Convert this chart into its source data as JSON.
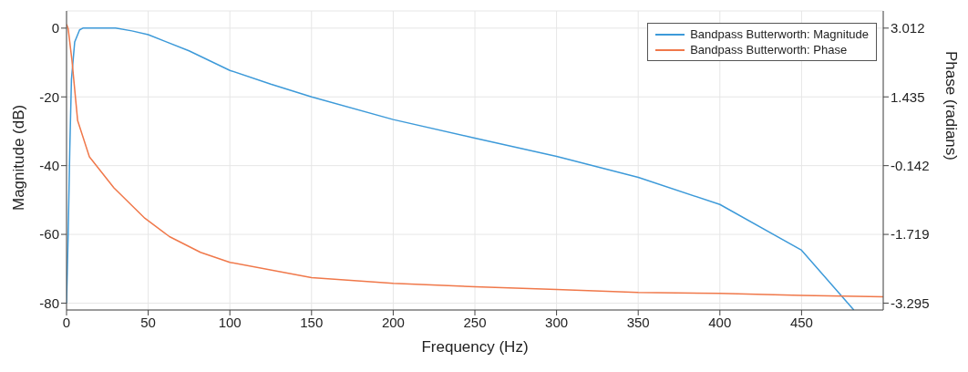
{
  "chart_data": {
    "type": "line",
    "xlabel": "Frequency (Hz)",
    "ylabel": "Magnitude (dB)",
    "y2label": "Phase (radians)",
    "xlim": [
      0,
      500
    ],
    "xticks": [
      0,
      50,
      100,
      150,
      200,
      250,
      300,
      350,
      400,
      450
    ],
    "ylim": [
      -82,
      5
    ],
    "yticks": [
      -80,
      -60,
      -40,
      -20,
      0
    ],
    "y2lim": [
      -3.453,
      3.406
    ],
    "y2ticks": [
      -3.295,
      -1.719,
      -0.142,
      1.435,
      3.012
    ],
    "grid": true,
    "legend": "top right",
    "line_style": "solid",
    "marker": "none",
    "series": [
      {
        "name": "Bandpass Butterworth: Magnitude",
        "color": "#3d9ad9",
        "x": [
          0,
          1,
          2,
          3,
          5,
          8,
          10,
          20,
          30,
          40,
          50,
          60,
          75,
          100,
          125,
          150,
          200,
          250,
          300,
          350,
          400,
          450,
          482
        ],
        "values": [
          -80,
          -60,
          -35,
          -15,
          -4,
          -0.5,
          0,
          0,
          0,
          -0.8,
          -1.9,
          -3.8,
          -6.6,
          -12.3,
          -16.3,
          -20,
          -26.6,
          -32,
          -37.3,
          -43.4,
          -51.3,
          -64.6,
          -82
        ]
      },
      {
        "name": "Bandpass Butterworth: Phase",
        "color": "#f0784a",
        "axis": "y2",
        "x": [
          0,
          1,
          3.3,
          6.8,
          14,
          29,
          48,
          63,
          82,
          100,
          150,
          200,
          250,
          300,
          350,
          400,
          450,
          500
        ],
        "values": [
          3.1,
          3.0,
          2.28,
          0.89,
          0.06,
          -0.65,
          -1.35,
          -1.77,
          -2.13,
          -2.36,
          -2.71,
          -2.84,
          -2.92,
          -2.98,
          -3.05,
          -3.07,
          -3.12,
          -3.15
        ]
      }
    ]
  }
}
